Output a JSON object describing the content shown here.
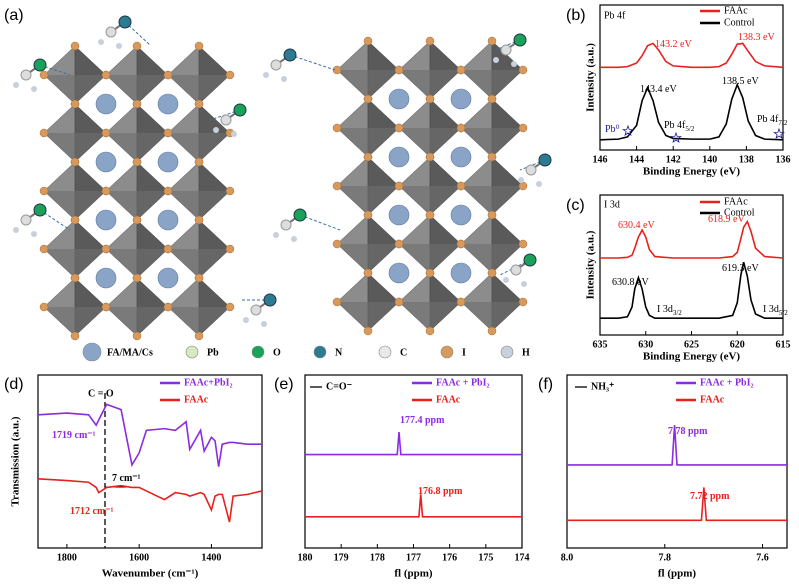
{
  "structure": {
    "label": "(a)",
    "legend": [
      "FA/MA/Cs",
      "Pb",
      "O",
      "N",
      "C",
      "I",
      "H"
    ]
  },
  "chart_data": [
    {
      "type": "line",
      "label": "(b)",
      "title": "Pb 4f",
      "xlabel": "Binding Energy (eV)",
      "ylabel": "Intensity (a.u.)",
      "x": [
        146,
        145,
        144.5,
        144,
        143.7,
        143.4,
        143.1,
        142.8,
        142.4,
        142,
        141,
        140,
        139.5,
        139.1,
        138.8,
        138.5,
        138.2,
        137.9,
        137.5,
        137,
        136
      ],
      "series": [
        {
          "name": "FAAc",
          "color": "#e8201e",
          "values": [
            5.7,
            5.7,
            5.75,
            6.0,
            6.5,
            7.2,
            7.35,
            6.9,
            6.1,
            5.8,
            5.7,
            5.7,
            5.75,
            6.0,
            6.6,
            7.3,
            7.35,
            6.8,
            6.1,
            5.8,
            5.7
          ]
        },
        {
          "name": "Control",
          "color": "#000000",
          "values": [
            0.7,
            0.75,
            0.9,
            1.7,
            3.4,
            4.3,
            3.4,
            1.9,
            1.0,
            0.8,
            0.75,
            0.75,
            0.9,
            1.8,
            3.5,
            4.5,
            3.6,
            2.0,
            1.0,
            0.75,
            0.7
          ]
        }
      ],
      "xlim": [
        146,
        136
      ],
      "xticks": [
        146,
        144,
        142,
        140,
        138,
        136
      ],
      "ylim": [
        0,
        10
      ],
      "annotations": [
        {
          "text": "143.2 eV",
          "color": "#e8201e"
        },
        {
          "text": "138.3 eV",
          "color": "#e8201e"
        },
        {
          "text": "143.4 eV",
          "color": "#000000"
        },
        {
          "text": "138.5 eV",
          "color": "#000000"
        },
        {
          "text": "Pb⁰",
          "color": "#1a1a8c"
        },
        {
          "text": "Pb 4f",
          "sub": "5/2",
          "color": "#000000"
        },
        {
          "text": "Pb 4f",
          "sub": "7/2",
          "color": "#000000"
        }
      ]
    },
    {
      "type": "line",
      "label": "(c)",
      "title": "I 3d",
      "xlabel": "Binding Energy (eV)",
      "ylabel": "Intensity (a.u.)",
      "x": [
        635,
        633,
        632,
        631.5,
        631.2,
        630.8,
        630.4,
        630,
        629.6,
        629,
        627,
        625,
        622,
        620.5,
        620,
        619.6,
        619.3,
        618.9,
        618.5,
        618,
        617,
        615
      ],
      "series": [
        {
          "name": "FAAc",
          "color": "#e8201e",
          "values": [
            5.5,
            5.5,
            5.55,
            5.7,
            6.2,
            7.0,
            7.5,
            7.0,
            6.1,
            5.6,
            5.5,
            5.5,
            5.5,
            5.6,
            5.9,
            6.9,
            7.7,
            8.1,
            7.4,
            6.2,
            5.6,
            5.5
          ]
        },
        {
          "name": "Control",
          "color": "#000000",
          "values": [
            1.2,
            1.2,
            1.3,
            2.0,
            3.3,
            4.1,
            3.3,
            2.0,
            1.4,
            1.2,
            1.2,
            1.2,
            1.2,
            1.4,
            2.3,
            4.3,
            5.2,
            4.2,
            2.5,
            1.5,
            1.2,
            1.2
          ]
        }
      ],
      "xlim": [
        635,
        615
      ],
      "xticks": [
        635,
        630,
        625,
        620,
        615
      ],
      "ylim": [
        0,
        10
      ],
      "annotations": [
        {
          "text": "630.4 eV",
          "color": "#e8201e"
        },
        {
          "text": "618.9 eV",
          "color": "#e8201e"
        },
        {
          "text": "630.8 eV",
          "color": "#000000"
        },
        {
          "text": "619.3 eV",
          "color": "#000000"
        },
        {
          "text": "I 3d",
          "sub": "3/2",
          "color": "#000000"
        },
        {
          "text": "I 3d",
          "sub": "5/2",
          "color": "#000000"
        }
      ]
    },
    {
      "type": "line",
      "label": "(d)",
      "title": "C = O",
      "xlabel": "Wavenumber (cm⁻¹)",
      "ylabel": "Transmission (a.u.)",
      "x": [
        1880,
        1800,
        1740,
        1719,
        1712,
        1690,
        1650,
        1620,
        1600,
        1580,
        1530,
        1500,
        1470,
        1460,
        1430,
        1420,
        1400,
        1390,
        1380,
        1370,
        1350,
        1340,
        1300,
        1260
      ],
      "series": [
        {
          "name": "FAAc+PbI₂",
          "color": "#8b2be2",
          "values": [
            7.7,
            7.8,
            7.7,
            7.1,
            7.4,
            8.3,
            8.0,
            4.8,
            5.5,
            6.8,
            6.9,
            6.8,
            7.3,
            5.7,
            6.8,
            5.6,
            6.4,
            6.2,
            4.7,
            6.0,
            6.1,
            6.1,
            6.0,
            6.0
          ]
        },
        {
          "name": "FAAc",
          "color": "#e8201e",
          "values": [
            4.0,
            3.9,
            3.8,
            3.5,
            3.2,
            3.5,
            3.6,
            3.5,
            3.5,
            3.3,
            2.8,
            3.2,
            3.1,
            3.0,
            3.2,
            3.1,
            2.2,
            3.0,
            3.1,
            3.1,
            1.5,
            3.0,
            3.1,
            3.3
          ]
        }
      ],
      "xlim": [
        1880,
        1260
      ],
      "xticks": [
        1800,
        1600,
        1400
      ],
      "ylim": [
        0,
        10
      ],
      "annotations": [
        {
          "text": "1719 cm⁻¹",
          "color": "#8b2be2"
        },
        {
          "text": "7 cm⁻¹",
          "color": "#000000"
        },
        {
          "text": "1712 cm⁻¹",
          "color": "#e8201e"
        }
      ]
    },
    {
      "type": "line",
      "label": "(e)",
      "title": "C=O⁻",
      "xlabel": "fl (ppm)",
      "x": [
        180,
        178,
        177.6,
        177.45,
        177.4,
        177.35,
        177.2,
        177,
        176.85,
        176.8,
        176.75,
        176.5,
        175,
        174
      ],
      "series": [
        {
          "name": "FAAc + PbI₂",
          "color": "#8b2be2",
          "values": [
            5.4,
            5.4,
            5.4,
            5.4,
            6.7,
            5.4,
            5.4,
            5.4,
            5.4,
            5.4,
            5.4,
            5.4,
            5.4,
            5.4
          ]
        },
        {
          "name": "FAAc",
          "color": "#e8201e",
          "values": [
            1.8,
            1.8,
            1.8,
            1.8,
            1.8,
            1.8,
            1.8,
            1.8,
            1.8,
            3.1,
            1.8,
            1.8,
            1.8,
            1.8
          ]
        }
      ],
      "xlim": [
        180,
        174
      ],
      "xticks": [
        180,
        179,
        178,
        177,
        176,
        175,
        174
      ],
      "ylim": [
        0,
        10
      ],
      "annotations": [
        {
          "text": "177.4 ppm",
          "color": "#8b2be2"
        },
        {
          "text": "176.8 ppm",
          "color": "#e8201e"
        }
      ]
    },
    {
      "type": "line",
      "label": "(f)",
      "title": "NH₃⁺",
      "xlabel": "fl (ppm)",
      "x": [
        8.0,
        7.85,
        7.79,
        7.785,
        7.78,
        7.775,
        7.77,
        7.73,
        7.725,
        7.72,
        7.715,
        7.71,
        7.6,
        7.55
      ],
      "series": [
        {
          "name": "FAAc + PbI₂",
          "color": "#8b2be2",
          "values": [
            4.8,
            4.8,
            4.8,
            4.8,
            7.1,
            4.8,
            4.8,
            4.8,
            4.8,
            4.8,
            4.8,
            4.8,
            4.8,
            4.8
          ]
        },
        {
          "name": "FAAc",
          "color": "#e8201e",
          "values": [
            1.6,
            1.6,
            1.6,
            1.6,
            1.6,
            1.6,
            1.6,
            1.6,
            1.6,
            3.5,
            1.6,
            1.6,
            1.6,
            1.6
          ]
        }
      ],
      "xlim": [
        8.0,
        7.55
      ],
      "xticks": [
        {
          "value": 8,
          "label": "8.0"
        },
        {
          "value": 7.8,
          "label": "7.8"
        },
        {
          "value": 7.6,
          "label": "7.6"
        }
      ],
      "ylim": [
        0,
        10
      ],
      "annotations": [
        {
          "text": "7.78 ppm",
          "color": "#8b2be2"
        },
        {
          "text": "7.72 ppm",
          "color": "#e8201e"
        }
      ]
    }
  ]
}
